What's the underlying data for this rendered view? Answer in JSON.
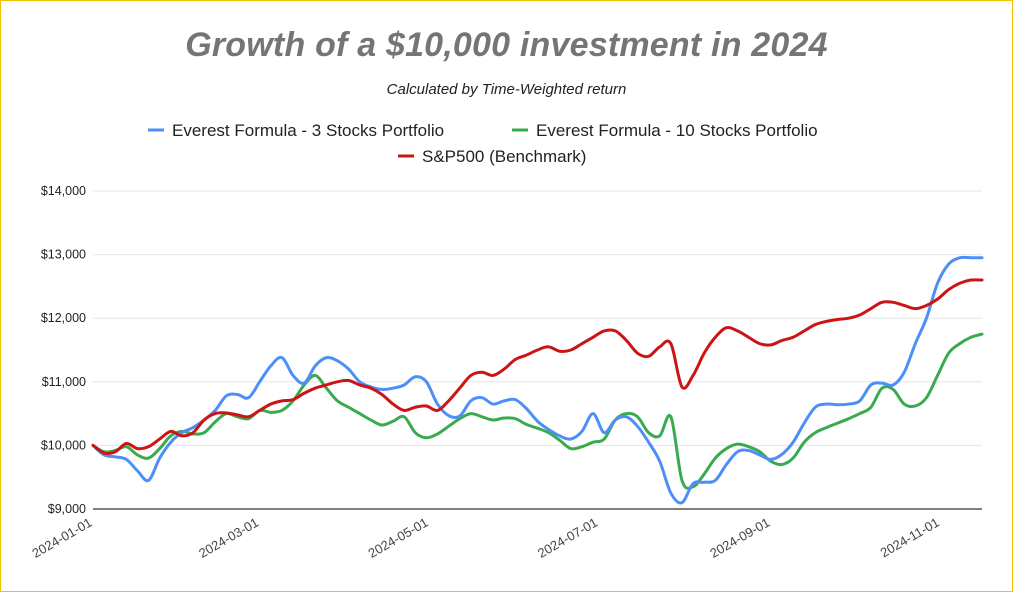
{
  "chart_data": {
    "type": "line",
    "title": "Growth of a $10,000 investment in 2024",
    "subtitle": "Calculated by Time-Weighted return",
    "xlabel": "",
    "ylabel": "",
    "x_ticks": [
      "2024-01-01",
      "2024-03-01",
      "2024-05-01",
      "2024-07-01",
      "2024-09-01",
      "2024-11-01"
    ],
    "y_ticks": [
      "$9,000",
      "$10,000",
      "$11,000",
      "$12,000",
      "$13,000",
      "$14,000"
    ],
    "xlim": [
      "2024-01-01",
      "2024-11-16"
    ],
    "ylim": [
      9000,
      14000
    ],
    "grid": true,
    "legend_position": "top",
    "x": [
      "2024-01-01",
      "2024-01-05",
      "2024-01-09",
      "2024-01-13",
      "2024-01-17",
      "2024-01-21",
      "2024-01-25",
      "2024-01-29",
      "2024-02-02",
      "2024-02-06",
      "2024-02-10",
      "2024-02-14",
      "2024-02-18",
      "2024-02-22",
      "2024-02-26",
      "2024-03-01",
      "2024-03-05",
      "2024-03-09",
      "2024-03-13",
      "2024-03-17",
      "2024-03-21",
      "2024-03-25",
      "2024-03-29",
      "2024-04-02",
      "2024-04-06",
      "2024-04-10",
      "2024-04-14",
      "2024-04-18",
      "2024-04-22",
      "2024-04-26",
      "2024-04-30",
      "2024-05-04",
      "2024-05-08",
      "2024-05-12",
      "2024-05-16",
      "2024-05-20",
      "2024-05-24",
      "2024-05-28",
      "2024-06-01",
      "2024-06-05",
      "2024-06-09",
      "2024-06-13",
      "2024-06-17",
      "2024-06-21",
      "2024-06-25",
      "2024-06-29",
      "2024-07-03",
      "2024-07-07",
      "2024-07-11",
      "2024-07-15",
      "2024-07-19",
      "2024-07-23",
      "2024-07-27",
      "2024-07-31",
      "2024-08-04",
      "2024-08-08",
      "2024-08-12",
      "2024-08-16",
      "2024-08-20",
      "2024-08-24",
      "2024-08-28",
      "2024-09-01",
      "2024-09-05",
      "2024-09-09",
      "2024-09-13",
      "2024-09-17",
      "2024-09-21",
      "2024-09-25",
      "2024-09-29",
      "2024-10-03",
      "2024-10-07",
      "2024-10-11",
      "2024-10-15",
      "2024-10-19",
      "2024-10-23",
      "2024-10-27",
      "2024-10-31",
      "2024-11-04",
      "2024-11-08",
      "2024-11-12",
      "2024-11-16"
    ],
    "series": [
      {
        "name": "Everest Formula - 3 Stocks Portfolio",
        "color": "#4e8ef7",
        "values": [
          10000,
          9850,
          9820,
          9780,
          9600,
          9450,
          9800,
          10050,
          10200,
          10280,
          10400,
          10550,
          10780,
          10800,
          10750,
          11000,
          11250,
          11380,
          11100,
          10980,
          11250,
          11380,
          11330,
          11200,
          11000,
          10920,
          10880,
          10900,
          10950,
          11080,
          11000,
          10650,
          10470,
          10460,
          10700,
          10750,
          10650,
          10700,
          10720,
          10580,
          10380,
          10250,
          10150,
          10100,
          10220,
          10500,
          10200,
          10400,
          10450,
          10300,
          10050,
          9750,
          9250,
          9100,
          9400,
          9420,
          9450,
          9700,
          9900,
          9920,
          9850,
          9780,
          9860,
          10050,
          10350,
          10600,
          10650,
          10640,
          10650,
          10700,
          10950,
          10980,
          10950,
          11150,
          11600,
          12000,
          12550,
          12850,
          12950,
          12950,
          12950
        ]
      },
      {
        "name": "Everest Formula - 10 Stocks Portfolio",
        "color": "#3aaa4f",
        "values": [
          10000,
          9900,
          9920,
          9980,
          9850,
          9800,
          9950,
          10150,
          10220,
          10180,
          10200,
          10370,
          10500,
          10450,
          10420,
          10550,
          10520,
          10550,
          10700,
          10950,
          11100,
          10900,
          10700,
          10600,
          10500,
          10400,
          10320,
          10380,
          10450,
          10200,
          10120,
          10180,
          10300,
          10420,
          10500,
          10450,
          10400,
          10430,
          10420,
          10330,
          10270,
          10200,
          10080,
          9950,
          9980,
          10050,
          10100,
          10400,
          10500,
          10450,
          10200,
          10150,
          10450,
          9450,
          9350,
          9550,
          9800,
          9950,
          10020,
          9980,
          9900,
          9750,
          9700,
          9800,
          10050,
          10200,
          10280,
          10350,
          10420,
          10500,
          10600,
          10900,
          10880,
          10650,
          10620,
          10750,
          11100,
          11450,
          11600,
          11700,
          11750
        ]
      },
      {
        "name": "S&P500 (Benchmark)",
        "color": "#cc1414",
        "values": [
          10000,
          9880,
          9900,
          10030,
          9950,
          9980,
          10100,
          10220,
          10150,
          10200,
          10400,
          10500,
          10510,
          10480,
          10450,
          10550,
          10650,
          10700,
          10720,
          10820,
          10900,
          10950,
          11000,
          11020,
          10950,
          10900,
          10800,
          10650,
          10550,
          10600,
          10620,
          10550,
          10700,
          10900,
          11100,
          11150,
          11100,
          11200,
          11350,
          11420,
          11500,
          11550,
          11480,
          11500,
          11600,
          11700,
          11800,
          11800,
          11650,
          11450,
          11400,
          11550,
          11600,
          10920,
          11100,
          11450,
          11700,
          11850,
          11800,
          11700,
          11600,
          11580,
          11650,
          11700,
          11800,
          11900,
          11950,
          11980,
          12000,
          12050,
          12150,
          12250,
          12250,
          12200,
          12150,
          12200,
          12300,
          12450,
          12550,
          12600,
          12600
        ]
      }
    ]
  }
}
